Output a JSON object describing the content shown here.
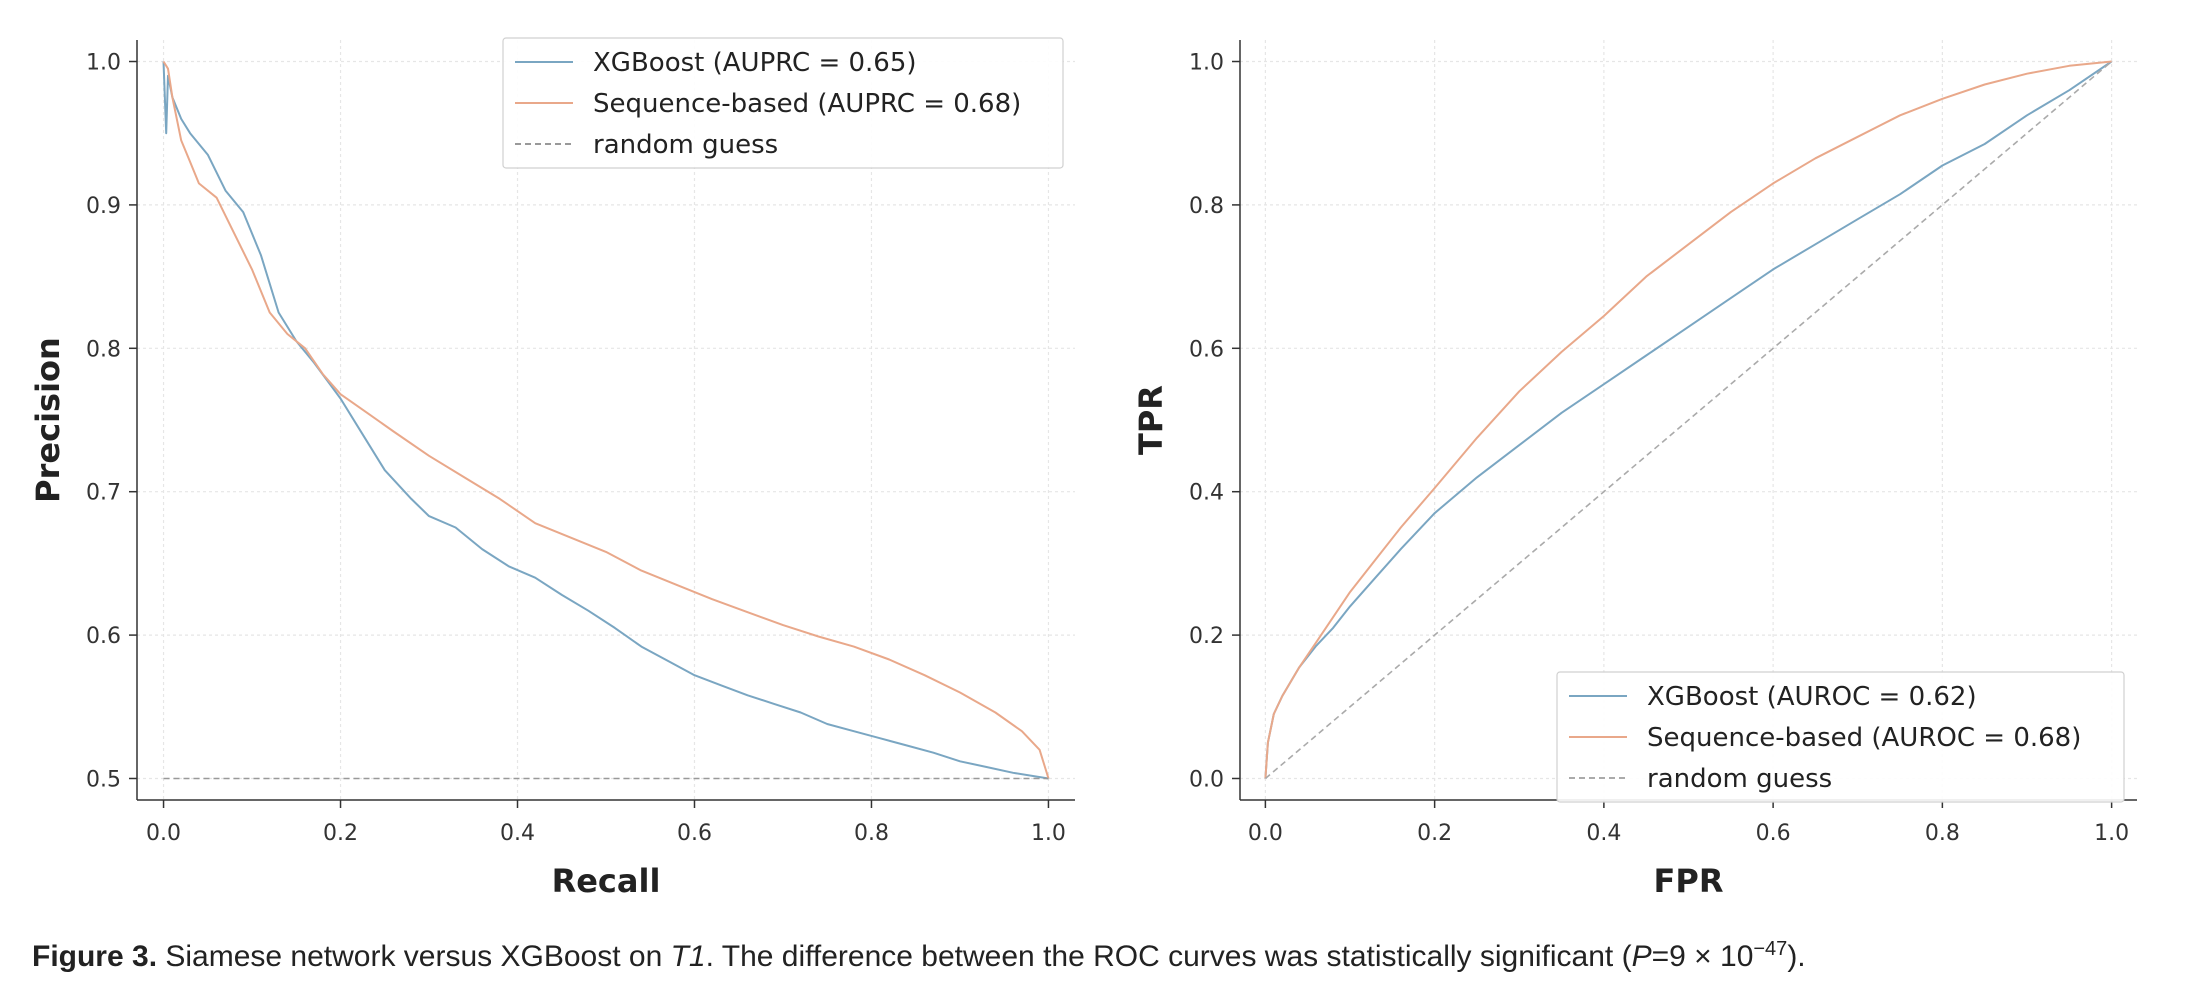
{
  "chart_data": [
    {
      "type": "line",
      "xlabel": "Recall",
      "ylabel": "Precision",
      "xlim": [
        0.0,
        1.0
      ],
      "ylim": [
        0.5,
        1.0
      ],
      "xticks": [
        "0.0",
        "0.2",
        "0.4",
        "0.6",
        "0.8",
        "1.0"
      ],
      "yticks": [
        "0.5",
        "0.6",
        "0.7",
        "0.8",
        "0.9",
        "1.0"
      ],
      "grid": true,
      "legend_position": "top-right",
      "series": [
        {
          "name": "XGBoost (AUPRC = 0.65)",
          "color": "#7aa6c2",
          "points": [
            [
              0.0,
              1.0
            ],
            [
              0.003,
              0.95
            ],
            [
              0.005,
              0.99
            ],
            [
              0.01,
              0.975
            ],
            [
              0.02,
              0.96
            ],
            [
              0.03,
              0.95
            ],
            [
              0.05,
              0.935
            ],
            [
              0.07,
              0.91
            ],
            [
              0.09,
              0.895
            ],
            [
              0.11,
              0.865
            ],
            [
              0.13,
              0.825
            ],
            [
              0.15,
              0.805
            ],
            [
              0.17,
              0.79
            ],
            [
              0.2,
              0.765
            ],
            [
              0.22,
              0.745
            ],
            [
              0.25,
              0.715
            ],
            [
              0.28,
              0.695
            ],
            [
              0.3,
              0.683
            ],
            [
              0.33,
              0.675
            ],
            [
              0.36,
              0.66
            ],
            [
              0.39,
              0.648
            ],
            [
              0.42,
              0.64
            ],
            [
              0.45,
              0.628
            ],
            [
              0.48,
              0.617
            ],
            [
              0.51,
              0.605
            ],
            [
              0.54,
              0.592
            ],
            [
              0.57,
              0.582
            ],
            [
              0.6,
              0.572
            ],
            [
              0.63,
              0.565
            ],
            [
              0.66,
              0.558
            ],
            [
              0.69,
              0.552
            ],
            [
              0.72,
              0.546
            ],
            [
              0.75,
              0.538
            ],
            [
              0.78,
              0.533
            ],
            [
              0.81,
              0.528
            ],
            [
              0.84,
              0.523
            ],
            [
              0.87,
              0.518
            ],
            [
              0.9,
              0.512
            ],
            [
              0.93,
              0.508
            ],
            [
              0.96,
              0.504
            ],
            [
              1.0,
              0.5
            ]
          ]
        },
        {
          "name": "Sequence-based (AUPRC = 0.68)",
          "color": "#e9a88a",
          "points": [
            [
              0.0,
              1.0
            ],
            [
              0.005,
              0.995
            ],
            [
              0.01,
              0.975
            ],
            [
              0.02,
              0.945
            ],
            [
              0.03,
              0.93
            ],
            [
              0.04,
              0.915
            ],
            [
              0.06,
              0.905
            ],
            [
              0.08,
              0.88
            ],
            [
              0.1,
              0.855
            ],
            [
              0.12,
              0.825
            ],
            [
              0.14,
              0.81
            ],
            [
              0.16,
              0.8
            ],
            [
              0.18,
              0.782
            ],
            [
              0.2,
              0.768
            ],
            [
              0.23,
              0.755
            ],
            [
              0.26,
              0.742
            ],
            [
              0.3,
              0.725
            ],
            [
              0.34,
              0.71
            ],
            [
              0.38,
              0.695
            ],
            [
              0.42,
              0.678
            ],
            [
              0.46,
              0.668
            ],
            [
              0.5,
              0.658
            ],
            [
              0.54,
              0.645
            ],
            [
              0.58,
              0.635
            ],
            [
              0.62,
              0.625
            ],
            [
              0.66,
              0.616
            ],
            [
              0.7,
              0.607
            ],
            [
              0.74,
              0.599
            ],
            [
              0.78,
              0.592
            ],
            [
              0.82,
              0.583
            ],
            [
              0.86,
              0.572
            ],
            [
              0.9,
              0.56
            ],
            [
              0.94,
              0.546
            ],
            [
              0.97,
              0.533
            ],
            [
              0.99,
              0.52
            ],
            [
              1.0,
              0.5
            ]
          ]
        },
        {
          "name": "random guess",
          "color": "#999999",
          "dashed": true,
          "points": [
            [
              0.0,
              0.5
            ],
            [
              1.0,
              0.5
            ]
          ]
        }
      ]
    },
    {
      "type": "line",
      "xlabel": "FPR",
      "ylabel": "TPR",
      "xlim": [
        0.0,
        1.0
      ],
      "ylim": [
        0.0,
        1.0
      ],
      "xticks": [
        "0.0",
        "0.2",
        "0.4",
        "0.6",
        "0.8",
        "1.0"
      ],
      "yticks": [
        "0.0",
        "0.2",
        "0.4",
        "0.6",
        "0.8",
        "1.0"
      ],
      "grid": true,
      "legend_position": "bottom-right",
      "series": [
        {
          "name": "XGBoost (AUROC = 0.62)",
          "color": "#7aa6c2",
          "points": [
            [
              0.0,
              0.0
            ],
            [
              0.003,
              0.05
            ],
            [
              0.01,
              0.09
            ],
            [
              0.02,
              0.115
            ],
            [
              0.04,
              0.155
            ],
            [
              0.06,
              0.185
            ],
            [
              0.08,
              0.21
            ],
            [
              0.1,
              0.24
            ],
            [
              0.13,
              0.28
            ],
            [
              0.16,
              0.32
            ],
            [
              0.2,
              0.37
            ],
            [
              0.25,
              0.42
            ],
            [
              0.3,
              0.465
            ],
            [
              0.35,
              0.51
            ],
            [
              0.4,
              0.55
            ],
            [
              0.45,
              0.59
            ],
            [
              0.5,
              0.63
            ],
            [
              0.55,
              0.67
            ],
            [
              0.6,
              0.71
            ],
            [
              0.65,
              0.745
            ],
            [
              0.7,
              0.78
            ],
            [
              0.75,
              0.815
            ],
            [
              0.8,
              0.855
            ],
            [
              0.85,
              0.885
            ],
            [
              0.9,
              0.925
            ],
            [
              0.95,
              0.96
            ],
            [
              1.0,
              1.0
            ]
          ]
        },
        {
          "name": "Sequence-based (AUROC = 0.68)",
          "color": "#e9a88a",
          "points": [
            [
              0.0,
              0.0
            ],
            [
              0.003,
              0.05
            ],
            [
              0.01,
              0.09
            ],
            [
              0.02,
              0.115
            ],
            [
              0.04,
              0.155
            ],
            [
              0.06,
              0.19
            ],
            [
              0.08,
              0.225
            ],
            [
              0.1,
              0.26
            ],
            [
              0.13,
              0.305
            ],
            [
              0.16,
              0.35
            ],
            [
              0.2,
              0.405
            ],
            [
              0.25,
              0.475
            ],
            [
              0.3,
              0.54
            ],
            [
              0.35,
              0.595
            ],
            [
              0.4,
              0.645
            ],
            [
              0.45,
              0.7
            ],
            [
              0.5,
              0.745
            ],
            [
              0.55,
              0.79
            ],
            [
              0.6,
              0.83
            ],
            [
              0.65,
              0.865
            ],
            [
              0.7,
              0.895
            ],
            [
              0.75,
              0.925
            ],
            [
              0.8,
              0.948
            ],
            [
              0.85,
              0.968
            ],
            [
              0.9,
              0.983
            ],
            [
              0.95,
              0.994
            ],
            [
              1.0,
              1.0
            ]
          ]
        },
        {
          "name": "random guess",
          "color": "#aaaaaa",
          "dashed": true,
          "points": [
            [
              0.0,
              0.0
            ],
            [
              1.0,
              1.0
            ]
          ]
        }
      ]
    }
  ],
  "caption": {
    "label": "Figure 3.",
    "text_before_t1": " Siamese network versus XGBoost on ",
    "t1": "T1",
    "text_before_p": ". The difference between the ROC curves was statistically significant (",
    "p_symbol": "P",
    "p_value": "=9 × 10",
    "p_exponent": "−47",
    "text_end": ")."
  }
}
